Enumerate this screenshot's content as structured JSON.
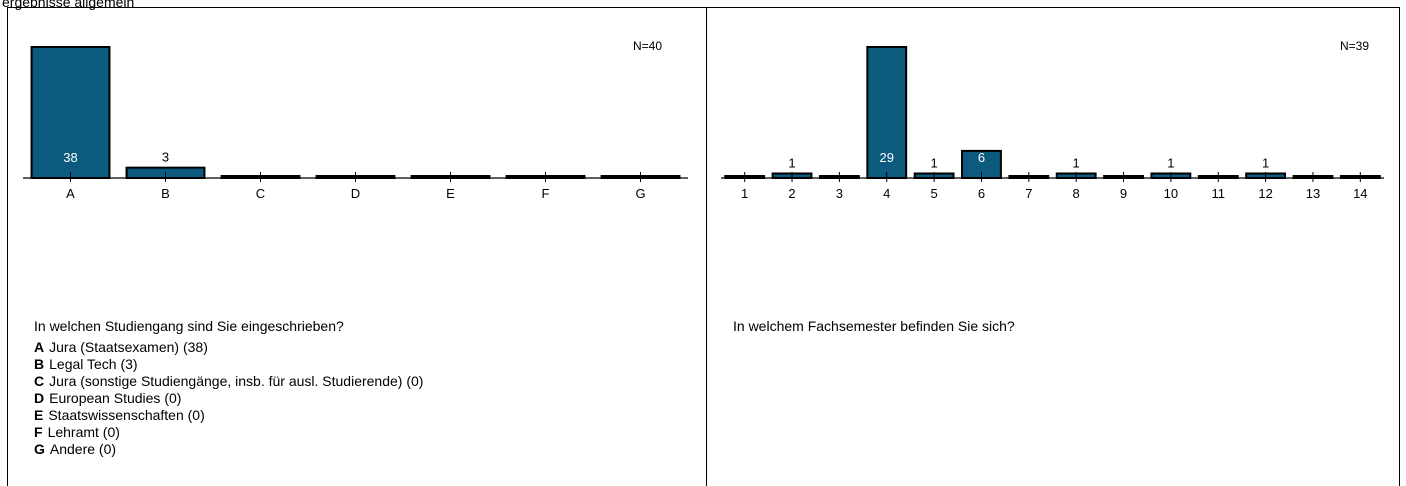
{
  "header": {
    "text": "ergebnisse allgemein"
  },
  "chart_data": [
    {
      "type": "bar",
      "n_label": "N=40",
      "categories": [
        "A",
        "B",
        "C",
        "D",
        "E",
        "F",
        "G"
      ],
      "values": [
        38,
        3,
        0,
        0,
        0,
        0,
        0
      ],
      "question": "In welchen Studiengang sind Sie eingeschrieben?",
      "legend": [
        {
          "key": "A",
          "text": "Jura (Staatsexamen) (38)"
        },
        {
          "key": "B",
          "text": "Legal Tech (3)"
        },
        {
          "key": "C",
          "text": "Jura (sonstige Studiengänge, insb. für ausl. Studierende) (0)"
        },
        {
          "key": "D",
          "text": "European Studies (0)"
        },
        {
          "key": "E",
          "text": "Staatswissenschaften (0)"
        },
        {
          "key": "F",
          "text": "Lehramt (0)"
        },
        {
          "key": "G",
          "text": "Andere (0)"
        }
      ],
      "bar_color": "#0c5a7d",
      "ylim": [
        0,
        38
      ]
    },
    {
      "type": "bar",
      "n_label": "N=39",
      "categories": [
        "1",
        "2",
        "3",
        "4",
        "5",
        "6",
        "7",
        "8",
        "9",
        "10",
        "11",
        "12",
        "13",
        "14"
      ],
      "values": [
        0,
        1,
        0,
        29,
        1,
        6,
        0,
        1,
        0,
        1,
        0,
        1,
        0,
        0
      ],
      "question": "In welchem Fachsemester befinden Sie sich?",
      "bar_color": "#0c5a7d",
      "ylim": [
        0,
        29
      ]
    }
  ]
}
